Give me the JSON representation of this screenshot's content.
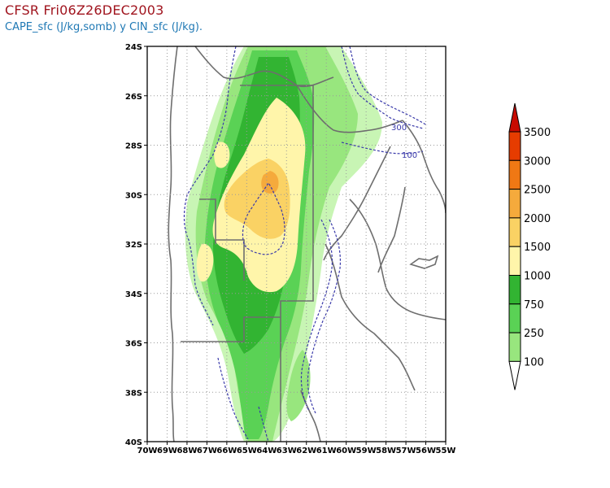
{
  "header": {
    "title": "CFSR Fri06Z26DEC2003",
    "subtitle": "CAPE_sfc (J/kg,somb) y CIN_sfc (J/kg)."
  },
  "colors": {
    "title": "#a0141e",
    "subtitle": "#1e78b4",
    "cin_contour": "#3a3aaa",
    "borders": "#6e6e6e",
    "grid": "#9a9a9a"
  },
  "chart_data": {
    "type": "heatmap",
    "map_extent": {
      "lon": [
        -70,
        -55
      ],
      "lat": [
        -40,
        -24
      ]
    },
    "lat_ticks": [
      "24S",
      "26S",
      "28S",
      "30S",
      "32S",
      "34S",
      "36S",
      "38S",
      "40S"
    ],
    "lon_ticks": [
      "70W",
      "69W",
      "68W",
      "67W",
      "66W",
      "65W",
      "64W",
      "63W",
      "62W",
      "61W",
      "60W",
      "59W",
      "58W",
      "57W",
      "56W",
      "55W"
    ],
    "grid": true,
    "cape_levels": [
      "100",
      "250",
      "750",
      "1000",
      "1500",
      "2000",
      "2500",
      "3000",
      "3500"
    ],
    "cape_colors": [
      "#c8f5b4",
      "#98e67e",
      "#5ad255",
      "#32b432",
      "#fff5aa",
      "#fad264",
      "#f5aa3c",
      "#f07814",
      "#e63c00",
      "#c80a00"
    ],
    "cin_contour_labels": [
      "300",
      "100"
    ]
  }
}
